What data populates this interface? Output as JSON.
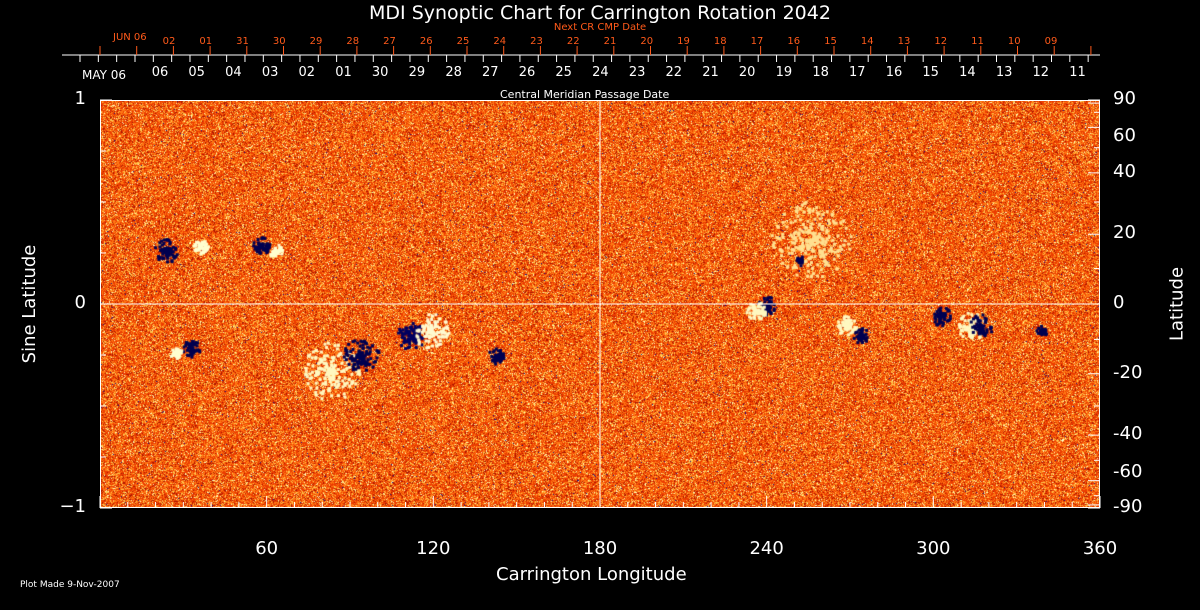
{
  "chart_data": {
    "type": "heatmap",
    "title": "MDI Synoptic Chart for Carrington Rotation 2042",
    "top_axis_secondary_label": "Next CR CMP Date",
    "top_axis_label": "Central Meridian Passage Date",
    "top_axis_start": "MAY 06",
    "top_axis_secondary_start": "JUN 06",
    "top_ticks": [
      "06",
      "05",
      "04",
      "03",
      "02",
      "01",
      "30",
      "29",
      "28",
      "27",
      "26",
      "25",
      "24",
      "23",
      "22",
      "21",
      "20",
      "19",
      "18",
      "17",
      "16",
      "15",
      "14",
      "13",
      "12",
      "11"
    ],
    "top_secondary_ticks": [
      "02",
      "01",
      "31",
      "30",
      "29",
      "28",
      "27",
      "26",
      "25",
      "24",
      "23",
      "22",
      "21",
      "20",
      "19",
      "18",
      "17",
      "16",
      "15",
      "14",
      "13",
      "12",
      "11",
      "10",
      "09"
    ],
    "xlabel": "Carrington Longitude",
    "xlim": [
      0,
      360
    ],
    "xticks": [
      60,
      120,
      180,
      240,
      300,
      360
    ],
    "ylabel": "Sine Latitude",
    "ylim": [
      -1,
      1
    ],
    "yticks": [
      "1",
      "0",
      "−1"
    ],
    "y2label": "Latitude",
    "y2ticks": [
      90,
      60,
      40,
      20,
      0,
      -20,
      -40,
      -60,
      -90
    ],
    "colormap": [
      "#000080",
      "#000000",
      "#c01000",
      "#ff4000",
      "#ff9020",
      "#ffffa0",
      "#ffffff"
    ],
    "footer": "Plot Made  9-Nov-2007"
  }
}
